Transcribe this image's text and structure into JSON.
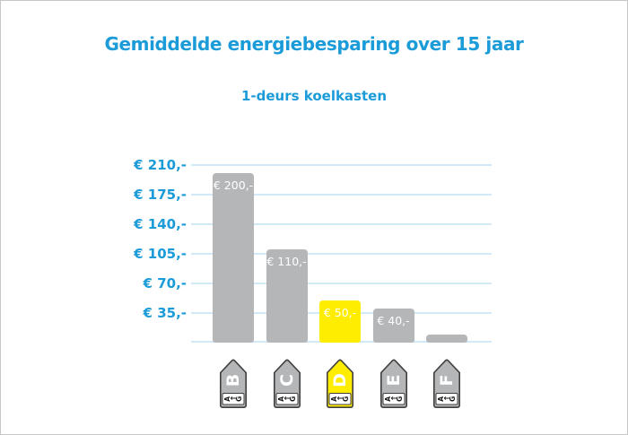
{
  "page": {
    "title": "Gemiddelde energiebesparing over 15 jaar",
    "subtitle": "1-deurs koelkasten"
  },
  "colors": {
    "accent_blue": "#1b9bd8",
    "gridline_blue": "#d2e9f7",
    "bar_gray": "#b5b6b8",
    "highlight_yellow": "#ffed00",
    "bar_label_white": "#ffffff",
    "tag_border": "#3f3f3f",
    "tag_letter_white": "#ffffff",
    "tag_scale_text": "#1a1a1a",
    "frame_border": "#c6c6c6"
  },
  "chart_data": {
    "type": "bar",
    "title": "Gemiddelde energiebesparing over 15 jaar",
    "subtitle": "1-deurs koelkasten",
    "categories": [
      "B",
      "C",
      "D",
      "E",
      "F"
    ],
    "values": [
      200,
      110,
      50,
      40,
      10
    ],
    "data_labels": [
      "€ 200,-",
      "€ 110,-",
      "€ 50,-",
      "€ 40,-",
      ""
    ],
    "highlight_index": 2,
    "y_ticks": [
      {
        "value": 210,
        "label": "€ 210,-"
      },
      {
        "value": 175,
        "label": "€ 175,-"
      },
      {
        "value": 140,
        "label": "€ 140,-"
      },
      {
        "value": 105,
        "label": "€ 105,-"
      },
      {
        "value": 70,
        "label": "€ 70,-"
      },
      {
        "value": 35,
        "label": "€ 35,-"
      }
    ],
    "ylim": [
      0,
      210
    ],
    "xlabel": "",
    "ylabel": "",
    "grid": true,
    "legend": "none",
    "x_axis_label_style": "energy-rating-tag",
    "energy_scale_glyphs": [
      "A",
      "←",
      "G"
    ]
  }
}
